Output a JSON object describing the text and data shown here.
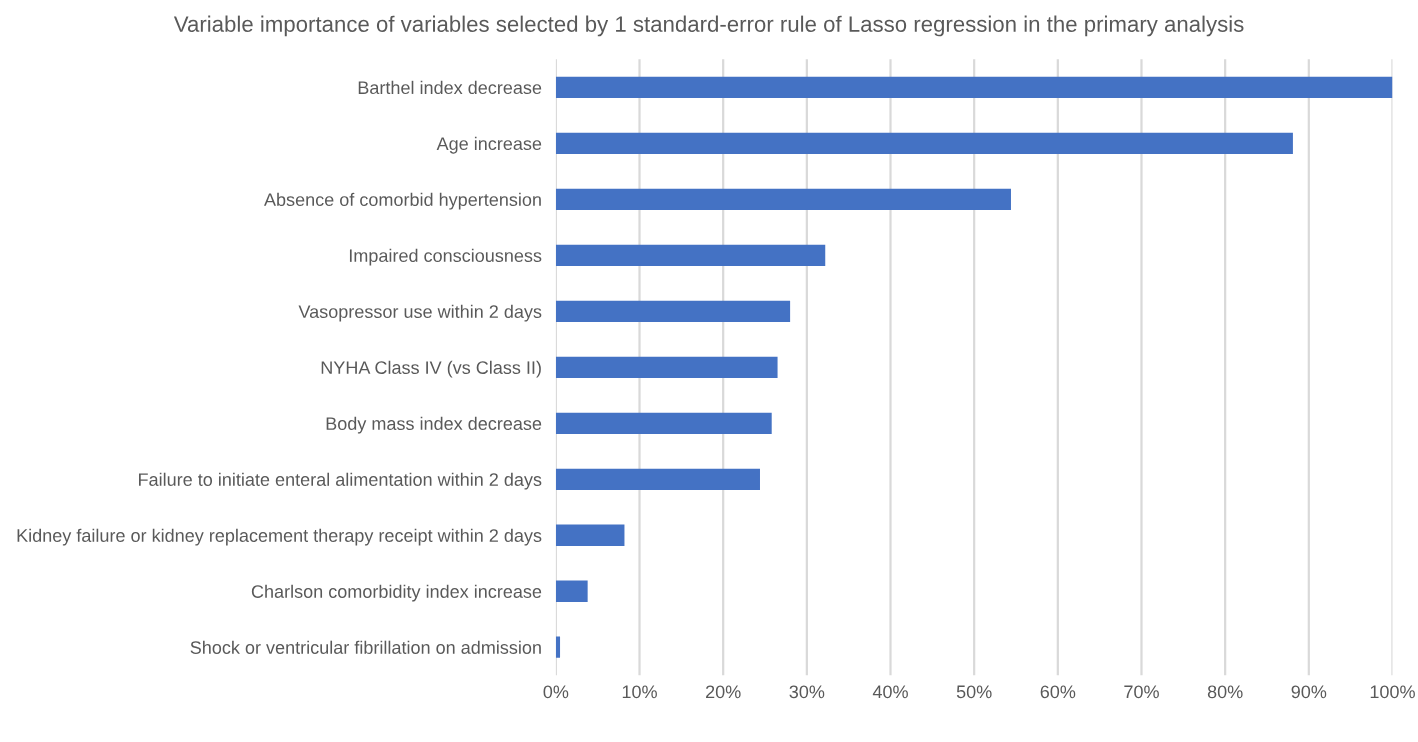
{
  "chart_data": {
    "type": "bar",
    "orientation": "horizontal",
    "title": "Variable importance of variables selected by 1 standard-error rule of Lasso regression in the primary analysis",
    "categories": [
      "Barthel index decrease",
      "Age increase",
      "Absence of comorbid hypertension",
      "Impaired consciousness",
      "Vasopressor use within 2 days",
      "NYHA Class IV (vs Class II)",
      "Body mass index decrease",
      "Failure to initiate enteral alimentation within 2 days",
      "Kidney failure or kidney replacement therapy receipt within 2 days",
      "Charlson comorbidity index increase",
      "Shock or ventricular fibrillation on admission"
    ],
    "values": [
      100,
      88.1,
      54.4,
      32.2,
      28.0,
      26.5,
      25.8,
      24.4,
      8.2,
      3.8,
      0.5
    ],
    "color": "#4472c4",
    "xlim": [
      0,
      100
    ],
    "xticks": [
      {
        "value": 0,
        "label": "0%"
      },
      {
        "value": 10,
        "label": "10%"
      },
      {
        "value": 20,
        "label": "20%"
      },
      {
        "value": 30,
        "label": "30%"
      },
      {
        "value": 40,
        "label": "40%"
      },
      {
        "value": 50,
        "label": "50%"
      },
      {
        "value": 60,
        "label": "60%"
      },
      {
        "value": 70,
        "label": "70%"
      },
      {
        "value": 80,
        "label": "80%"
      },
      {
        "value": 90,
        "label": "90%"
      },
      {
        "value": 100,
        "label": "100%"
      }
    ],
    "grid": "x",
    "legend": false
  }
}
